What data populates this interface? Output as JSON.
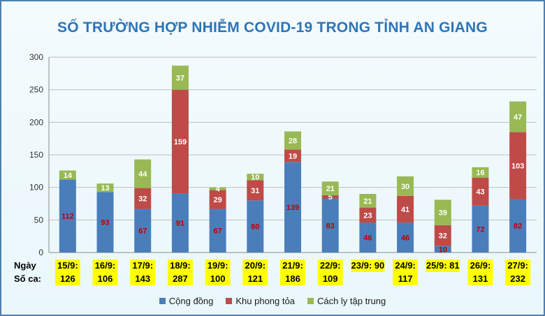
{
  "chart_data": {
    "type": "bar",
    "stacked": true,
    "title": "SỐ TRƯỜNG HỢP NHIỄM COVID-19 TRONG TỈNH AN GIANG",
    "ylim": [
      0,
      300
    ],
    "yticks": [
      "0",
      "50",
      "100",
      "150",
      "200",
      "250",
      "300"
    ],
    "grid": true,
    "legend_position": "bottom",
    "row_labels": {
      "day": "Ngày",
      "cases": "Số ca:"
    },
    "categories": [
      {
        "date": "15/9:",
        "total": "126"
      },
      {
        "date": "16/9:",
        "total": "106"
      },
      {
        "date": "17/9:",
        "total": "143"
      },
      {
        "date": "18/9:",
        "total": "287"
      },
      {
        "date": "19/9:",
        "total": "100"
      },
      {
        "date": "20/9:",
        "total": "121"
      },
      {
        "date": "21/9:",
        "total": "186"
      },
      {
        "date": "22/9:",
        "total": "109"
      },
      {
        "date": "23/9: 90",
        "total": ""
      },
      {
        "date": "24/9:",
        "total": "117"
      },
      {
        "date": "25/9: 81",
        "total": ""
      },
      {
        "date": "26/9:",
        "total": "131"
      },
      {
        "date": "27/9:",
        "total": "232"
      }
    ],
    "series": [
      {
        "name": "Cộng đồng",
        "color": "#4a7ebb",
        "values": [
          112,
          93,
          67,
          91,
          67,
          80,
          139,
          83,
          46,
          46,
          10,
          72,
          82
        ]
      },
      {
        "name": "Khu phong tỏa",
        "color": "#be4b48",
        "values": [
          0,
          0,
          32,
          159,
          29,
          31,
          19,
          5,
          23,
          41,
          32,
          43,
          103
        ]
      },
      {
        "name": "Cách ly tập trung",
        "color": "#98b954",
        "values": [
          14,
          13,
          44,
          37,
          4,
          10,
          28,
          21,
          21,
          30,
          39,
          16,
          47
        ]
      }
    ]
  }
}
